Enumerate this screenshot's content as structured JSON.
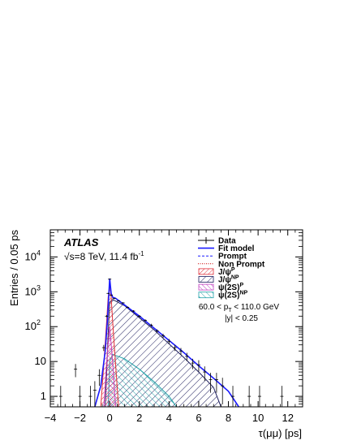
{
  "chart_data": {
    "type": "line",
    "xlabel": "τ(μμ) [ps]",
    "ylabel": "Entries / 0.05 ps",
    "xlim": [
      -4,
      13
    ],
    "ylim": [
      0.5,
      60000
    ],
    "yscale": "log",
    "x_ticks": [
      -4,
      -2,
      0,
      2,
      4,
      6,
      8,
      10,
      12
    ],
    "y_ticks": [
      {
        "value": 1,
        "base": "1",
        "exp": ""
      },
      {
        "value": 10,
        "base": "10",
        "exp": ""
      },
      {
        "value": 100,
        "base": "10",
        "exp": "2"
      },
      {
        "value": 1000,
        "base": "10",
        "exp": "3"
      },
      {
        "value": 10000,
        "base": "10",
        "exp": "4"
      }
    ],
    "annotations": {
      "experiment": "ATLAS",
      "energy_prefix": "√s",
      "energy_text": "=8 TeV, 11.4 fb",
      "energy_sup": "-1",
      "pt_cut": "60.0 < p",
      "pt_sub": "T",
      "pt_cut_rest": " < 110.0 GeV",
      "y_cut": "|y| < 0.25"
    },
    "legend": {
      "placement": "top-right",
      "entries": [
        {
          "key": "data",
          "label": "Data",
          "sup": ""
        },
        {
          "key": "fit",
          "label": "Fit model",
          "sup": ""
        },
        {
          "key": "prompt",
          "label": "Prompt",
          "sup": ""
        },
        {
          "key": "nonprompt",
          "label": "Non Prompt",
          "sup": ""
        },
        {
          "key": "jpsi_p",
          "label": "J/ψ",
          "sup": "P"
        },
        {
          "key": "jpsi_np",
          "label": "J/ψ",
          "sup": "NP"
        },
        {
          "key": "psi2s_p",
          "label": "ψ(2S)",
          "sup": "P"
        },
        {
          "key": "psi2s_np",
          "label": "ψ(2S)",
          "sup": "NP"
        }
      ]
    },
    "colors": {
      "data": "#000000",
      "fit": "#1a1aff",
      "prompt": "#1a1aff",
      "nonprompt": "#cc0000",
      "jpsi_p": "#e0303a",
      "jpsi_np": "#1c1c5c",
      "psi2s_p": "#c040c0",
      "psi2s_np": "#20a0a8"
    },
    "series": [
      {
        "key": "fit",
        "x": [
          -1.0,
          -0.6,
          -0.3,
          -0.15,
          0.0,
          0.1,
          0.2,
          0.4,
          1,
          2,
          3,
          4,
          5,
          6,
          7,
          8,
          8.7
        ],
        "y": [
          0.5,
          2,
          20,
          150,
          2400,
          900,
          700,
          650,
          420,
          200,
          90,
          40,
          18,
          7.5,
          3.3,
          1.4,
          0.5
        ]
      },
      {
        "key": "jpsi_p",
        "x": [
          -0.6,
          -0.4,
          -0.2,
          -0.1,
          0.0,
          0.1,
          0.2,
          0.4,
          0.6
        ],
        "y": [
          0.5,
          8,
          150,
          700,
          1600,
          700,
          150,
          8,
          0.5
        ]
      },
      {
        "key": "jpsi_np",
        "x": [
          -0.3,
          -0.1,
          0.0,
          0.2,
          1,
          2,
          3,
          4,
          5,
          6,
          7,
          7.5
        ],
        "y": [
          0.5,
          60,
          500,
          600,
          400,
          180,
          80,
          32,
          13,
          5,
          1.8,
          0.5
        ]
      },
      {
        "key": "psi2s_p",
        "x": [
          -0.4,
          -0.2,
          0.0,
          0.2,
          0.4
        ],
        "y": [
          0.5,
          10,
          100,
          10,
          0.5
        ]
      },
      {
        "key": "psi2s_np",
        "x": [
          -0.1,
          0.0,
          0.2,
          1,
          2,
          3,
          4,
          4.5
        ],
        "y": [
          0.5,
          10,
          16,
          12,
          6,
          2.6,
          1.0,
          0.5
        ]
      },
      {
        "key": "data",
        "x": [
          -3.3,
          -2.3,
          -2.0,
          -1.3,
          -1.0,
          -0.7,
          -0.4,
          -0.2,
          -0.1,
          0.0,
          0.1,
          0.3,
          0.6,
          0.9,
          1.2,
          1.6,
          2.0,
          2.4,
          2.8,
          3.2,
          3.6,
          4.0,
          4.4,
          4.8,
          5.2,
          5.6,
          6.0,
          6.4,
          6.8,
          7.2,
          7.6,
          8.3,
          9.4,
          10.1,
          11.6
        ],
        "y": [
          1,
          6,
          1,
          1,
          1.5,
          4,
          25,
          200,
          900,
          2300,
          800,
          640,
          550,
          480,
          360,
          280,
          200,
          150,
          110,
          75,
          55,
          38,
          25,
          20,
          14,
          9,
          8,
          5,
          3,
          3,
          2,
          1,
          1,
          1,
          1
        ]
      }
    ]
  }
}
